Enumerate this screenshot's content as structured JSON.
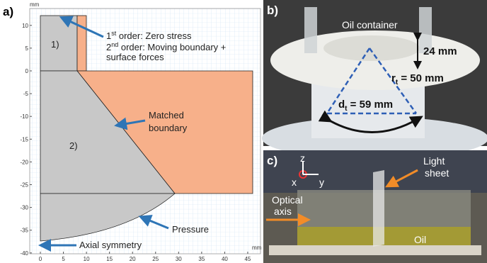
{
  "panel_a": {
    "label": "a)",
    "unit_y": "mm",
    "unit_x": "mm",
    "xticks": [
      0,
      5,
      10,
      15,
      20,
      25,
      30,
      35,
      40,
      45
    ],
    "yticks": [
      10,
      5,
      0,
      -5,
      -10,
      -15,
      -20,
      -25,
      -30,
      -35,
      -40
    ],
    "region_1": "1)",
    "region_2": "2)",
    "first_order": {
      "number": "1",
      "suffix": "st",
      "text": " order: Zero stress"
    },
    "second_order": {
      "number": "2",
      "suffix": "nd",
      "text": " order: Moving boundary +",
      "line2": "surface forces"
    },
    "matched": [
      "Matched",
      "boundary"
    ],
    "pressure": "Pressure",
    "axial": "Axial symmetry"
  },
  "panel_b": {
    "label": "b)",
    "container": "Oil container",
    "height": "24 mm",
    "radius": {
      "symbol": "r",
      "sub": "t",
      "text": " = 50 mm"
    },
    "diameter": {
      "symbol": "d",
      "sub": "t",
      "text": " = 59 mm"
    }
  },
  "panel_c": {
    "label": "c)",
    "z": "z",
    "x": "x",
    "y": "y",
    "light": [
      "Light",
      "sheet"
    ],
    "optical": [
      "Optical",
      "axis"
    ],
    "oil": "Oil"
  }
}
